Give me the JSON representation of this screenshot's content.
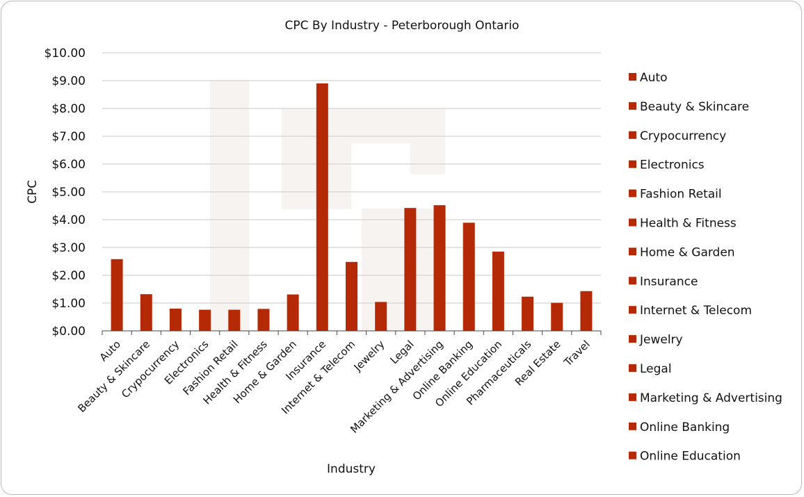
{
  "chart_data": {
    "type": "bar",
    "title": "CPC By Industry - Peterborough Ontario",
    "xlabel": "Industry",
    "ylabel": "CPC",
    "ylim": [
      0,
      10
    ],
    "ytick_labels": [
      "$0.00",
      "$1.00",
      "$2.00",
      "$3.00",
      "$4.00",
      "$5.00",
      "$6.00",
      "$7.00",
      "$8.00",
      "$9.00",
      "$10.00"
    ],
    "grid": true,
    "legend_position": "right",
    "bar_color": "#b52a06",
    "categories": [
      "Auto",
      "Beauty & Skincare",
      "Crypocurrency",
      "Electronics",
      "Fashion Retail",
      "Health & Fitness",
      "Home & Garden",
      "Insurance",
      "Internet & Telecom",
      "Jewelry",
      "Legal",
      "Marketing & Advertising",
      "Online Banking",
      "Online Education",
      "Pharmaceuticals",
      "Real Estate",
      "Travel"
    ],
    "values": [
      2.58,
      1.32,
      0.8,
      0.76,
      0.76,
      0.79,
      1.31,
      8.9,
      2.48,
      1.04,
      4.42,
      4.52,
      3.89,
      2.85,
      1.23,
      1.01,
      1.43
    ],
    "legend_entries": [
      "Auto",
      "Beauty & Skincare",
      "Crypocurrency",
      "Electronics",
      "Fashion Retail",
      "Health & Fitness",
      "Home & Garden",
      "Insurance",
      "Internet & Telecom",
      "Jewelry",
      "Legal",
      "Marketing & Advertising",
      "Online Banking",
      "Online Education"
    ]
  }
}
